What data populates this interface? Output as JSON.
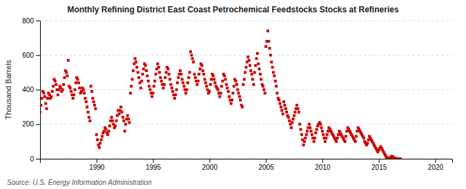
{
  "chart_data": {
    "type": "scatter",
    "title": "Monthly Refining District East Coast Petrochemical Feedstocks Stocks at Refineries",
    "ylabel": "Thousand Barrels",
    "source": "Source: U.S. Energy Information Administration",
    "color": "#cc0000",
    "marker": "square",
    "grid": true,
    "xlim": [
      1985.0,
      2021.5
    ],
    "ylim": [
      0,
      800
    ],
    "xticks": [
      1990,
      1995,
      2000,
      2005,
      2010,
      2015,
      2020
    ],
    "yticks": [
      0,
      200,
      400,
      600,
      800
    ],
    "x": [
      1985,
      1985.0833333333333,
      1985.1666666666667,
      1985.25,
      1985.3333333333333,
      1985.4166666666667,
      1985.5,
      1985.5833333333333,
      1985.6666666666667,
      1985.75,
      1985.8333333333333,
      1985.9166666666667,
      1986,
      1986.0833333333333,
      1986.1666666666667,
      1986.25,
      1986.3333333333333,
      1986.4166666666667,
      1986.5,
      1986.5833333333333,
      1986.6666666666667,
      1986.75,
      1986.8333333333333,
      1986.9166666666667,
      1987,
      1987.0833333333333,
      1987.1666666666667,
      1987.25,
      1987.3333333333333,
      1987.4166666666667,
      1987.5,
      1987.5833333333333,
      1987.6666666666667,
      1987.75,
      1987.8333333333333,
      1987.9166666666667,
      1988,
      1988.0833333333333,
      1988.1666666666667,
      1988.25,
      1988.3333333333333,
      1988.4166666666667,
      1988.5,
      1988.5833333333333,
      1988.6666666666667,
      1988.75,
      1988.8333333333333,
      1988.9166666666667,
      1989,
      1989.0833333333333,
      1989.1666666666667,
      1989.25,
      1989.3333333333333,
      1989.4166666666667,
      1989.5,
      1989.5833333333333,
      1989.6666666666667,
      1989.75,
      1989.8333333333333,
      1989.9166666666667,
      1990,
      1990.0833333333333,
      1990.1666666666667,
      1990.25,
      1990.3333333333333,
      1990.4166666666667,
      1990.5,
      1990.5833333333333,
      1990.6666666666667,
      1990.75,
      1990.8333333333333,
      1990.9166666666667,
      1991,
      1991.0833333333333,
      1991.1666666666667,
      1991.25,
      1991.3333333333333,
      1991.4166666666667,
      1991.5,
      1991.5833333333333,
      1991.6666666666667,
      1991.75,
      1991.8333333333333,
      1991.9166666666667,
      1992,
      1992.0833333333333,
      1992.1666666666667,
      1992.25,
      1992.3333333333333,
      1992.4166666666667,
      1992.5,
      1992.5833333333333,
      1992.6666666666667,
      1992.75,
      1992.8333333333333,
      1992.9166666666667,
      1993,
      1993.0833333333333,
      1993.1666666666667,
      1993.25,
      1993.3333333333333,
      1993.4166666666667,
      1993.5,
      1993.5833333333333,
      1993.6666666666667,
      1993.75,
      1993.8333333333333,
      1993.9166666666667,
      1994,
      1994.0833333333333,
      1994.1666666666667,
      1994.25,
      1994.3333333333333,
      1994.4166666666667,
      1994.5,
      1994.5833333333333,
      1994.6666666666667,
      1994.75,
      1994.8333333333333,
      1994.9166666666667,
      1995,
      1995.0833333333333,
      1995.1666666666667,
      1995.25,
      1995.3333333333333,
      1995.4166666666667,
      1995.5,
      1995.5833333333333,
      1995.6666666666667,
      1995.75,
      1995.8333333333333,
      1995.9166666666667,
      1996,
      1996.0833333333333,
      1996.1666666666667,
      1996.25,
      1996.3333333333333,
      1996.4166666666667,
      1996.5,
      1996.5833333333333,
      1996.6666666666667,
      1996.75,
      1996.8333333333333,
      1996.9166666666667,
      1997,
      1997.0833333333333,
      1997.1666666666667,
      1997.25,
      1997.3333333333333,
      1997.4166666666667,
      1997.5,
      1997.5833333333333,
      1997.6666666666667,
      1997.75,
      1997.8333333333333,
      1997.9166666666667,
      1998,
      1998.0833333333333,
      1998.1666666666667,
      1998.25,
      1998.3333333333333,
      1998.4166666666667,
      1998.5,
      1998.5833333333333,
      1998.6666666666667,
      1998.75,
      1998.8333333333333,
      1998.9166666666667,
      1999,
      1999.0833333333333,
      1999.1666666666667,
      1999.25,
      1999.3333333333333,
      1999.4166666666667,
      1999.5,
      1999.5833333333333,
      1999.6666666666667,
      1999.75,
      1999.8333333333333,
      1999.9166666666667,
      2000,
      2000.0833333333333,
      2000.1666666666667,
      2000.25,
      2000.3333333333333,
      2000.4166666666667,
      2000.5,
      2000.5833333333333,
      2000.6666666666667,
      2000.75,
      2000.8333333333333,
      2000.9166666666667,
      2001,
      2001.0833333333333,
      2001.1666666666667,
      2001.25,
      2001.3333333333333,
      2001.4166666666667,
      2001.5,
      2001.5833333333333,
      2001.6666666666667,
      2001.75,
      2001.8333333333333,
      2001.9166666666667,
      2002,
      2002.0833333333333,
      2002.1666666666667,
      2002.25,
      2002.3333333333333,
      2002.4166666666667,
      2002.5,
      2002.5833333333333,
      2002.6666666666667,
      2002.75,
      2002.8333333333333,
      2002.9166666666667,
      2003,
      2003.0833333333333,
      2003.1666666666667,
      2003.25,
      2003.3333333333333,
      2003.4166666666667,
      2003.5,
      2003.5833333333333,
      2003.6666666666667,
      2003.75,
      2003.8333333333333,
      2003.9166666666667,
      2004,
      2004.0833333333333,
      2004.1666666666667,
      2004.25,
      2004.3333333333333,
      2004.4166666666667,
      2004.5,
      2004.5833333333333,
      2004.6666666666667,
      2004.75,
      2004.8333333333333,
      2004.9166666666667,
      2005,
      2005.0833333333333,
      2005.1666666666667,
      2005.25,
      2005.3333333333333,
      2005.4166666666667,
      2005.5,
      2005.5833333333333,
      2005.6666666666667,
      2005.75,
      2005.8333333333333,
      2005.9166666666667,
      2006,
      2006.0833333333333,
      2006.1666666666667,
      2006.25,
      2006.3333333333333,
      2006.4166666666667,
      2006.5,
      2006.5833333333333,
      2006.6666666666667,
      2006.75,
      2006.8333333333333,
      2006.9166666666667,
      2007,
      2007.0833333333333,
      2007.1666666666667,
      2007.25,
      2007.3333333333333,
      2007.4166666666667,
      2007.5,
      2007.5833333333333,
      2007.6666666666667,
      2007.75,
      2007.8333333333333,
      2007.9166666666667,
      2008,
      2008.0833333333333,
      2008.1666666666667,
      2008.25,
      2008.3333333333333,
      2008.4166666666667,
      2008.5,
      2008.5833333333333,
      2008.6666666666667,
      2008.75,
      2008.8333333333333,
      2008.9166666666667,
      2009,
      2009.0833333333333,
      2009.1666666666667,
      2009.25,
      2009.3333333333333,
      2009.4166666666667,
      2009.5,
      2009.5833333333333,
      2009.6666666666667,
      2009.75,
      2009.8333333333333,
      2009.9166666666667,
      2010,
      2010.0833333333333,
      2010.1666666666667,
      2010.25,
      2010.3333333333333,
      2010.4166666666667,
      2010.5,
      2010.5833333333333,
      2010.6666666666667,
      2010.75,
      2010.8333333333333,
      2010.9166666666667,
      2011,
      2011.0833333333333,
      2011.1666666666667,
      2011.25,
      2011.3333333333333,
      2011.4166666666667,
      2011.5,
      2011.5833333333333,
      2011.6666666666667,
      2011.75,
      2011.8333333333333,
      2011.9166666666667,
      2012,
      2012.0833333333333,
      2012.1666666666667,
      2012.25,
      2012.3333333333333,
      2012.4166666666667,
      2012.5,
      2012.5833333333333,
      2012.6666666666667,
      2012.75,
      2012.8333333333333,
      2012.9166666666667,
      2013,
      2013.0833333333333,
      2013.1666666666667,
      2013.25,
      2013.3333333333333,
      2013.4166666666667,
      2013.5,
      2013.5833333333333,
      2013.6666666666667,
      2013.75,
      2013.8333333333333,
      2013.9166666666667,
      2014,
      2014.0833333333333,
      2014.1666666666667,
      2014.25,
      2014.3333333333333,
      2014.4166666666667,
      2014.5,
      2014.5833333333333,
      2014.6666666666667,
      2014.75,
      2014.8333333333333,
      2014.9166666666667,
      2015,
      2015.0833333333333,
      2015.1666666666667,
      2015.25,
      2015.3333333333333,
      2015.4166666666667,
      2015.5,
      2015.5833333333333,
      2015.6666666666667,
      2015.75,
      2015.8333333333333,
      2015.9166666666667,
      2016,
      2016.0833333333333,
      2016.1666666666667,
      2016.25,
      2016.3333333333333,
      2016.4166666666667,
      2016.5,
      2016.5833333333333,
      2016.6666666666667,
      2016.75,
      2016.8333333333333,
      2016.9166666666667
    ],
    "values": [
      270,
      310,
      350,
      390,
      380,
      360,
      320,
      290,
      350,
      380,
      370,
      350,
      360,
      390,
      420,
      460,
      450,
      430,
      400,
      370,
      400,
      420,
      410,
      390,
      400,
      430,
      470,
      510,
      500,
      480,
      570,
      420,
      410,
      390,
      370,
      350,
      370,
      400,
      440,
      470,
      460,
      440,
      410,
      380,
      390,
      410,
      400,
      380,
      350,
      330,
      300,
      270,
      240,
      220,
      420,
      390,
      350,
      330,
      310,
      290,
      140,
      110,
      80,
      65,
      90,
      110,
      130,
      150,
      160,
      180,
      170,
      150,
      140,
      160,
      190,
      220,
      240,
      220,
      200,
      180,
      190,
      220,
      250,
      280,
      260,
      280,
      300,
      270,
      240,
      220,
      160,
      200,
      230,
      250,
      230,
      210,
      380,
      420,
      460,
      510,
      550,
      580,
      560,
      530,
      500,
      470,
      440,
      410,
      450,
      490,
      520,
      550,
      540,
      510,
      480,
      450,
      420,
      400,
      380,
      360,
      380,
      420,
      450,
      490,
      520,
      550,
      530,
      500,
      470,
      450,
      430,
      410,
      430,
      470,
      500,
      530,
      520,
      490,
      460,
      430,
      410,
      390,
      370,
      350,
      370,
      400,
      440,
      470,
      490,
      510,
      490,
      460,
      440,
      420,
      400,
      380,
      400,
      440,
      470,
      500,
      620,
      600,
      580,
      560,
      490,
      470,
      450,
      430,
      450,
      490,
      520,
      550,
      540,
      510,
      490,
      460,
      440,
      420,
      400,
      380,
      390,
      430,
      460,
      490,
      480,
      460,
      440,
      420,
      410,
      400,
      380,
      360,
      380,
      420,
      450,
      490,
      480,
      460,
      430,
      410,
      390,
      360,
      340,
      320,
      340,
      380,
      420,
      460,
      450,
      430,
      400,
      380,
      360,
      340,
      310,
      300,
      430,
      460,
      500,
      530,
      560,
      590,
      570,
      540,
      510,
      490,
      460,
      430,
      500,
      540,
      580,
      610,
      550,
      520,
      490,
      460,
      430,
      420,
      400,
      380,
      650,
      680,
      740,
      680,
      640,
      600,
      560,
      530,
      500,
      480,
      450,
      420,
      380,
      350,
      340,
      320,
      300,
      280,
      260,
      330,
      310,
      290,
      270,
      250,
      240,
      220,
      200,
      180,
      210,
      230,
      250,
      270,
      290,
      310,
      290,
      270,
      200,
      170,
      140,
      110,
      80,
      100,
      120,
      140,
      160,
      180,
      200,
      180,
      160,
      140,
      120,
      100,
      120,
      150,
      170,
      190,
      200,
      210,
      200,
      180,
      160,
      140,
      120,
      100,
      120,
      140,
      160,
      180,
      170,
      160,
      150,
      140,
      130,
      120,
      110,
      100,
      120,
      140,
      160,
      150,
      140,
      130,
      120,
      110,
      100,
      130,
      160,
      180,
      170,
      160,
      150,
      140,
      130,
      120,
      110,
      100,
      130,
      160,
      180,
      170,
      160,
      150,
      140,
      130,
      120,
      100,
      90,
      80,
      90,
      110,
      130,
      120,
      110,
      100,
      90,
      80,
      70,
      60,
      50,
      40,
      50,
      60,
      70,
      60,
      50,
      40,
      30,
      20,
      10,
      5,
      2,
      0,
      5,
      10,
      15,
      10,
      5,
      3,
      1,
      0,
      0,
      0,
      0,
      0
    ]
  }
}
